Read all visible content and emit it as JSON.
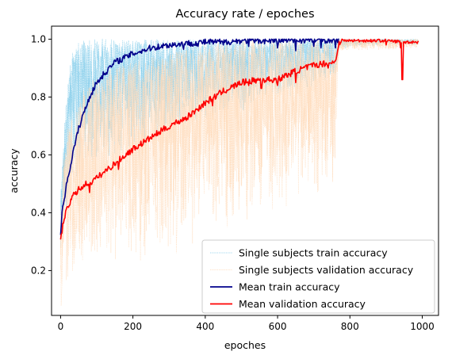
{
  "chart_data": {
    "type": "line",
    "title": "Accuracy rate / epoches",
    "xlabel": "epoches",
    "ylabel": "accuracy",
    "xlim": [
      -25,
      1045
    ],
    "ylim": [
      0.045,
      1.045
    ],
    "xticks": [
      0,
      200,
      400,
      600,
      800,
      1000
    ],
    "yticks": [
      0.2,
      0.4,
      0.6,
      0.8,
      1.0
    ],
    "xtick_labels": [
      "0",
      "200",
      "400",
      "600",
      "800",
      "1000"
    ],
    "ytick_labels": [
      "0.2",
      "0.4",
      "0.6",
      "0.8",
      "1.0"
    ],
    "grid": false,
    "legend_position": "lower-right",
    "series": [
      {
        "name": "Single subjects train accuracy",
        "style": "dotted-thin",
        "color": "#87ceeb",
        "envelope": {
          "x": [
            0,
            10,
            20,
            30,
            50,
            80,
            120,
            200,
            300,
            400,
            500,
            600,
            700,
            760,
            770,
            800,
            900,
            990
          ],
          "low": [
            0.28,
            0.35,
            0.42,
            0.45,
            0.5,
            0.56,
            0.58,
            0.62,
            0.66,
            0.72,
            0.75,
            0.78,
            0.84,
            0.86,
            0.96,
            0.97,
            0.98,
            0.98
          ],
          "high": [
            0.45,
            0.7,
            0.85,
            0.95,
            0.99,
            1.0,
            1.0,
            1.0,
            1.0,
            1.0,
            1.0,
            1.0,
            1.0,
            1.0,
            1.0,
            1.0,
            1.0,
            1.0
          ]
        }
      },
      {
        "name": "Single subjects validation accuracy",
        "style": "dotted-thin",
        "color": "#ffdab9",
        "envelope": {
          "x": [
            0,
            10,
            20,
            50,
            100,
            200,
            300,
            400,
            500,
            600,
            700,
            760,
            770,
            800,
            900,
            990
          ],
          "low": [
            0.06,
            0.12,
            0.14,
            0.18,
            0.2,
            0.22,
            0.25,
            0.3,
            0.35,
            0.4,
            0.45,
            0.48,
            0.95,
            0.96,
            0.96,
            0.97
          ],
          "high": [
            0.4,
            0.6,
            0.7,
            0.8,
            0.88,
            0.92,
            0.95,
            0.98,
            1.0,
            1.0,
            1.0,
            1.0,
            1.0,
            1.0,
            1.0,
            1.0
          ]
        }
      },
      {
        "name": "Mean train accuracy",
        "style": "solid",
        "color": "#00008b",
        "x": [
          0,
          5,
          10,
          20,
          30,
          40,
          50,
          60,
          80,
          100,
          120,
          150,
          200,
          250,
          300,
          350,
          400,
          450,
          500,
          550,
          600,
          650,
          700,
          750,
          770
        ],
        "values": [
          0.32,
          0.42,
          0.45,
          0.52,
          0.58,
          0.64,
          0.69,
          0.73,
          0.8,
          0.85,
          0.88,
          0.92,
          0.95,
          0.97,
          0.98,
          0.985,
          0.99,
          0.99,
          0.995,
          0.995,
          0.995,
          0.997,
          0.997,
          0.998,
          0.998
        ],
        "dips": [
          [
            340,
            0.965
          ],
          [
            380,
            0.975
          ],
          [
            450,
            0.98
          ],
          [
            520,
            0.975
          ],
          [
            600,
            0.97
          ],
          [
            650,
            0.96
          ],
          [
            700,
            0.975
          ],
          [
            720,
            0.97
          ],
          [
            760,
            0.97
          ]
        ]
      },
      {
        "name": "Mean validation accuracy",
        "style": "solid",
        "color": "#ff0000",
        "x": [
          0,
          5,
          10,
          20,
          30,
          50,
          70,
          90,
          100,
          120,
          150,
          200,
          250,
          300,
          350,
          400,
          450,
          500,
          550,
          600,
          650,
          700,
          750,
          760,
          765,
          770,
          780,
          800,
          850,
          900,
          950,
          990
        ],
        "values": [
          0.3,
          0.35,
          0.38,
          0.42,
          0.45,
          0.48,
          0.5,
          0.51,
          0.52,
          0.54,
          0.57,
          0.62,
          0.66,
          0.7,
          0.73,
          0.78,
          0.82,
          0.85,
          0.86,
          0.86,
          0.89,
          0.91,
          0.92,
          0.92,
          0.96,
          0.99,
          0.995,
          0.995,
          0.995,
          0.995,
          0.99,
          0.99
        ],
        "dips": [
          [
            80,
            0.47
          ],
          [
            160,
            0.55
          ],
          [
            300,
            0.69
          ],
          [
            420,
            0.77
          ],
          [
            520,
            0.84
          ],
          [
            555,
            0.83
          ],
          [
            600,
            0.84
          ],
          [
            650,
            0.85
          ],
          [
            740,
            0.9
          ],
          [
            900,
            0.98
          ],
          [
            940,
            0.97
          ],
          [
            945,
            0.86
          ]
        ]
      }
    ]
  }
}
